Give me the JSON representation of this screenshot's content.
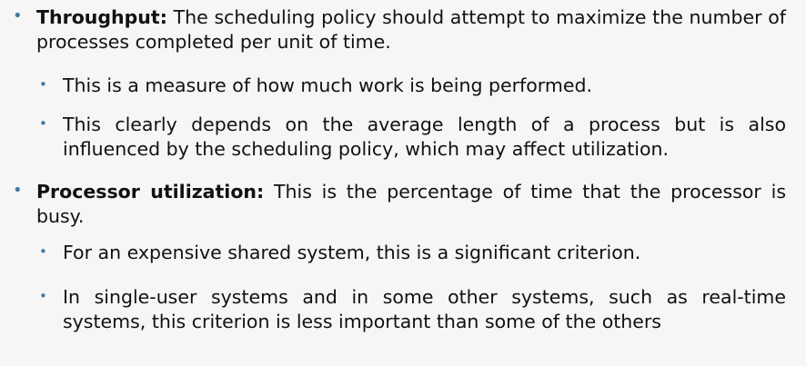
{
  "items": [
    {
      "term": "Throughput:",
      "text": " The scheduling policy should attempt to maximize the number of processes completed per unit of time.",
      "subitems": [
        "This is a measure of how much work is being performed.",
        "This clearly depends on the average length of a process but is also influenced by the scheduling policy, which may affect utilization."
      ]
    },
    {
      "term": "Processor utilization:",
      "text": " This is the percentage of time that the processor is busy.",
      "subitems": [
        "For an expensive shared system, this is a significant criterion.",
        "In single-user systems and in some other systems, such as real-time systems, this criterion is less important than some of the others"
      ]
    }
  ],
  "colors": {
    "bullet": "#3d7ba5",
    "text": "#111111",
    "background": "#f6f6f6"
  }
}
